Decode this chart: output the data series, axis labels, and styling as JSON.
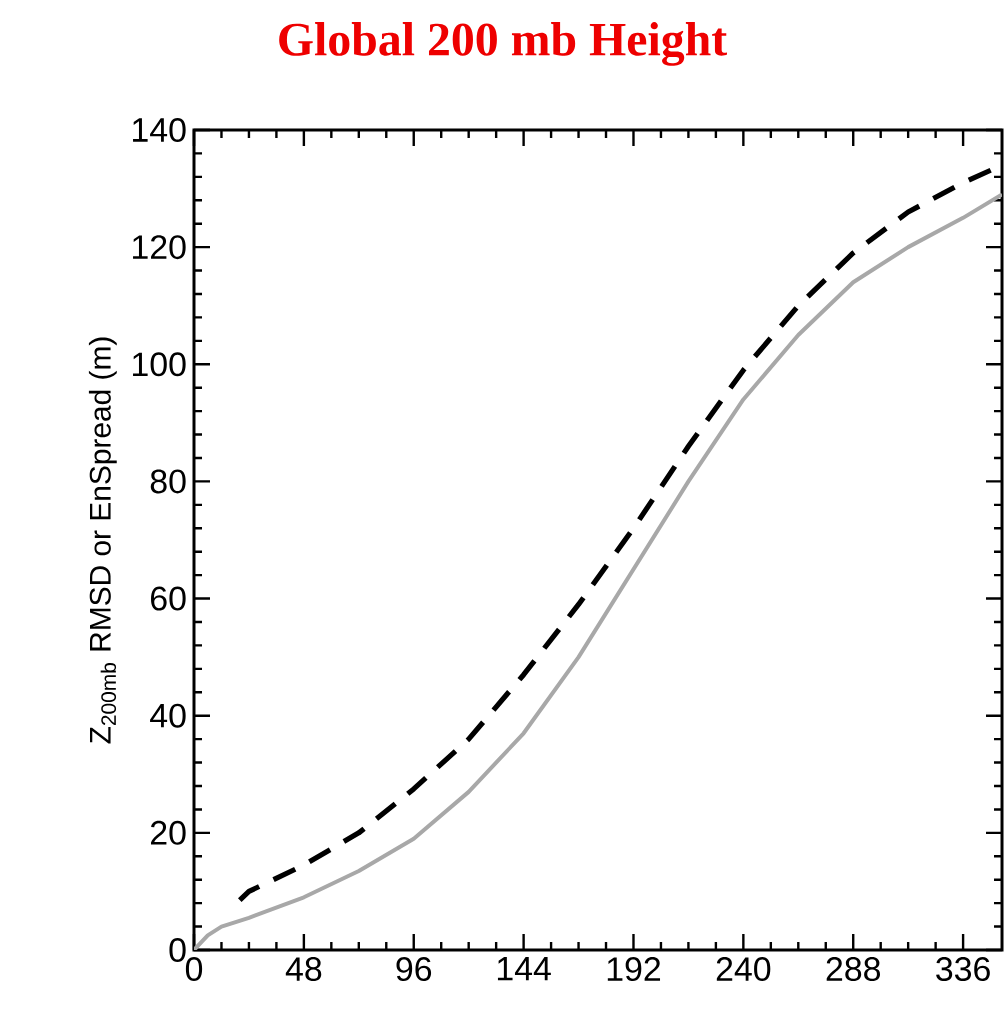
{
  "chart_data": {
    "type": "line",
    "title": "Global 200 mb Height",
    "ylabel": "Z$_{200mb}$ RMSD or EnSpread (m)",
    "xlim": [
      0,
      353
    ],
    "xticks": [
      0,
      48,
      96,
      144,
      192,
      240,
      288,
      336
    ],
    "ylim": [
      0,
      140
    ],
    "yticks": [
      0,
      20,
      40,
      60,
      80,
      100,
      120,
      140
    ],
    "marker": "none",
    "series": [
      {
        "color": "#a8a8a8",
        "line_style": "solid",
        "x": [
          0,
          6,
          12,
          24,
          48,
          72,
          96,
          120,
          144,
          168,
          192,
          216,
          240,
          264,
          288,
          312,
          336,
          353
        ],
        "values": [
          0,
          2.5,
          4,
          5.5,
          9,
          13.5,
          19,
          27,
          37,
          50,
          65,
          80,
          94,
          105,
          114,
          120,
          125,
          129
        ]
      },
      {
        "color": "#000000",
        "line_style": "dashed",
        "x": [
          20,
          24,
          48,
          72,
          96,
          120,
          144,
          168,
          192,
          216,
          240,
          264,
          288,
          312,
          336,
          353
        ],
        "values": [
          8.5,
          10,
          14.5,
          20,
          27.5,
          36,
          47,
          59,
          72,
          86,
          99,
          110,
          119,
          126,
          131,
          134
        ]
      }
    ]
  }
}
